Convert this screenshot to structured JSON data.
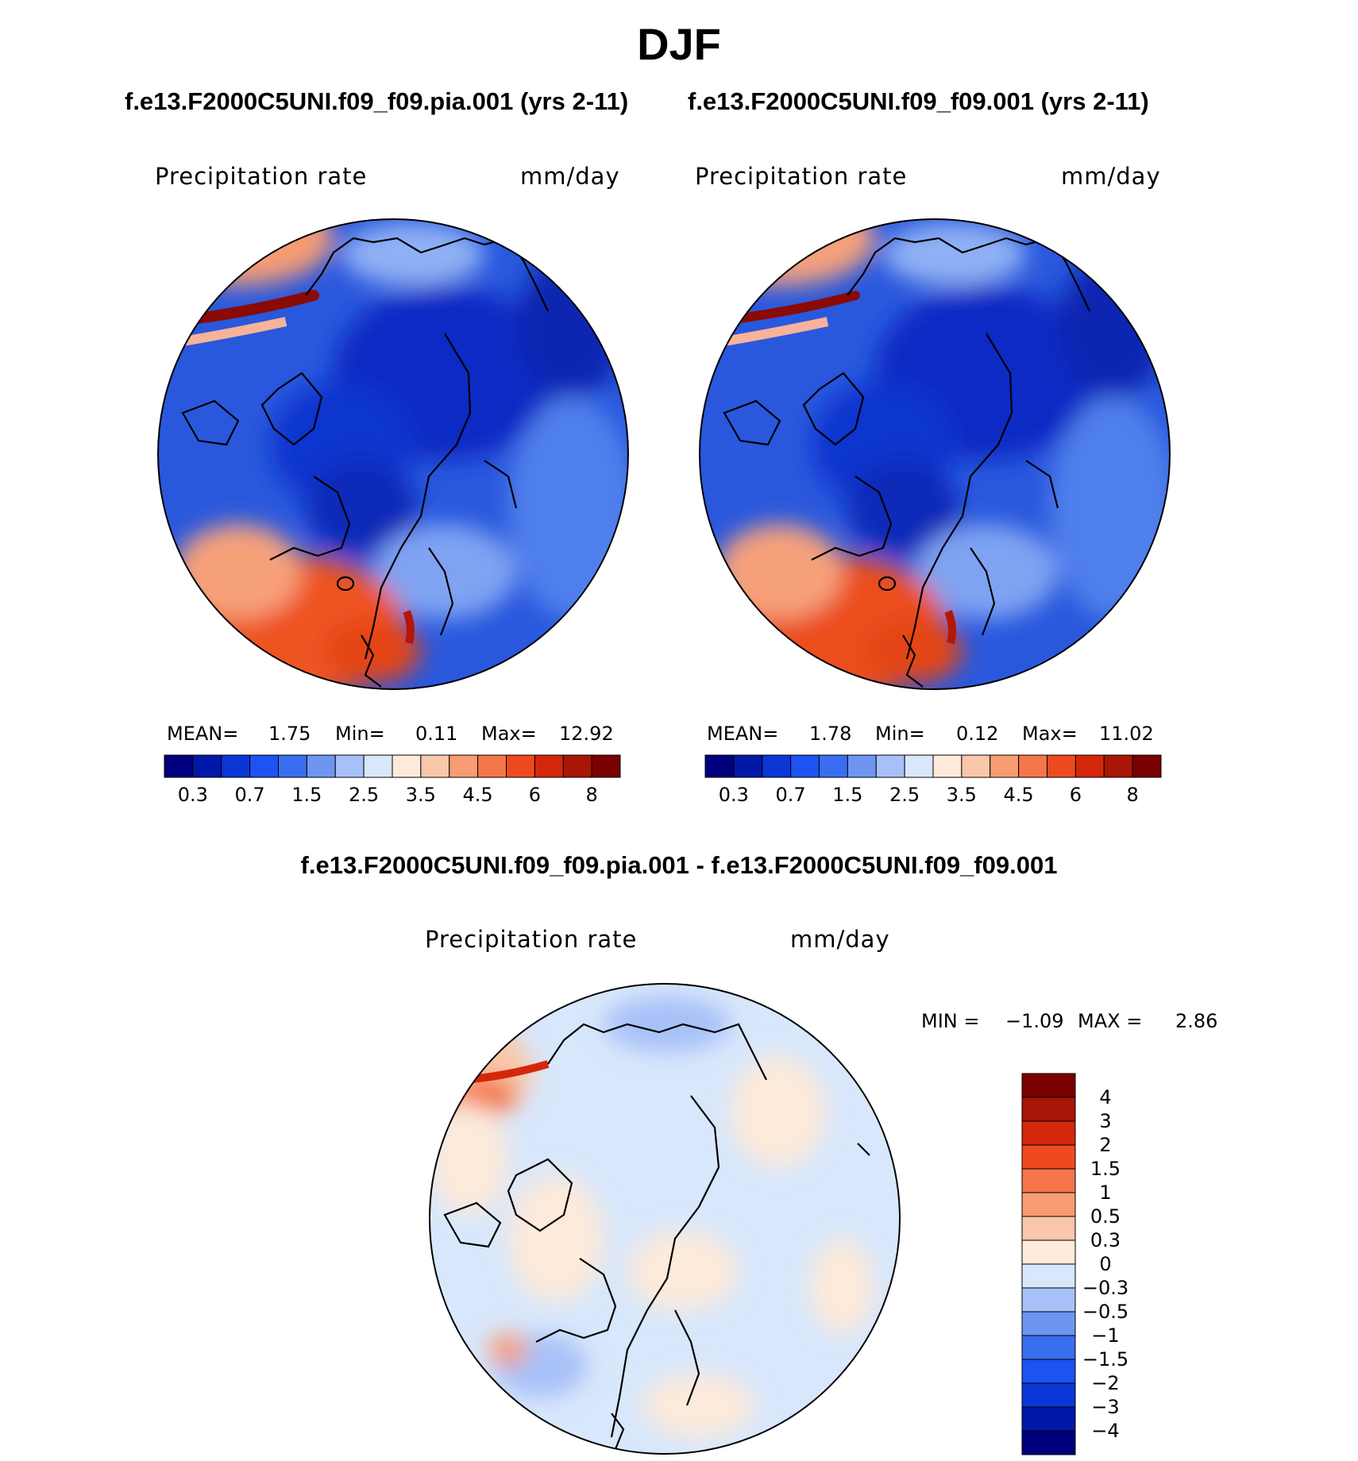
{
  "title": "DJF",
  "colors": {
    "ocean_base": "#3a66e0",
    "coast": "#000000",
    "abs_palette": [
      "#00007e",
      "#0018a8",
      "#0b36d6",
      "#1c53f1",
      "#3a6ef0",
      "#6f95f3",
      "#a7c1f8",
      "#d8e7fb",
      "#fdeada",
      "#f9c7a9",
      "#f79c73",
      "#f5764a",
      "#ee4a1e",
      "#d4270b",
      "#a91506",
      "#7a0002"
    ],
    "diff_palette": [
      "#7a0002",
      "#a91506",
      "#d4270b",
      "#ee4a1e",
      "#f5764a",
      "#f79c73",
      "#f9c7a9",
      "#fdeada",
      "#d8e7fb",
      "#a7c1f8",
      "#6f95f3",
      "#3a6ef0",
      "#1c53f1",
      "#0b36d6",
      "#0018a8",
      "#00007e"
    ]
  },
  "chart_data": [
    {
      "type": "heatmap",
      "projection": "north-polar-stereographic",
      "case_title": "f.e13.F2000C5UNI.f09_f09.pia.001 (yrs 2-11)",
      "variable": "Precipitation rate",
      "units": "mm/day",
      "stats": {
        "mean_label": "MEAN=",
        "mean": "1.75",
        "min_label": "Min=",
        "min": "0.11",
        "max_label": "Max=",
        "max": "12.92"
      },
      "colorbar": {
        "orientation": "horizontal",
        "levels": [
          0.2,
          0.3,
          0.5,
          0.7,
          1,
          1.5,
          2,
          2.5,
          3,
          3.5,
          4,
          4.5,
          5,
          6,
          7,
          8
        ],
        "tick_labels": [
          "0.3",
          "0.7",
          "1.5",
          "2.5",
          "3.5",
          "4.5",
          "6",
          "8"
        ]
      }
    },
    {
      "type": "heatmap",
      "projection": "north-polar-stereographic",
      "case_title": "f.e13.F2000C5UNI.f09_f09.001 (yrs 2-11)",
      "variable": "Precipitation rate",
      "units": "mm/day",
      "stats": {
        "mean_label": "MEAN=",
        "mean": "1.78",
        "min_label": "Min=",
        "min": "0.12",
        "max_label": "Max=",
        "max": "11.02"
      },
      "colorbar": {
        "orientation": "horizontal",
        "levels": [
          0.2,
          0.3,
          0.5,
          0.7,
          1,
          1.5,
          2,
          2.5,
          3,
          3.5,
          4,
          4.5,
          5,
          6,
          7,
          8
        ],
        "tick_labels": [
          "0.3",
          "0.7",
          "1.5",
          "2.5",
          "3.5",
          "4.5",
          "6",
          "8"
        ]
      }
    },
    {
      "type": "heatmap",
      "projection": "north-polar-stereographic",
      "case_title": "f.e13.F2000C5UNI.f09_f09.pia.001 - f.e13.F2000C5UNI.f09_f09.001",
      "variable": "Precipitation rate",
      "units": "mm/day",
      "stats": {
        "min_label": "MIN =",
        "min": "−1.09",
        "max_label": "MAX =",
        "max": "2.86"
      },
      "colorbar": {
        "orientation": "vertical",
        "tick_labels": [
          "4",
          "3",
          "2",
          "1.5",
          "1",
          "0.5",
          "0.3",
          "0",
          "−0.3",
          "−0.5",
          "−1",
          "−1.5",
          "−2",
          "−3",
          "−4"
        ]
      }
    }
  ]
}
